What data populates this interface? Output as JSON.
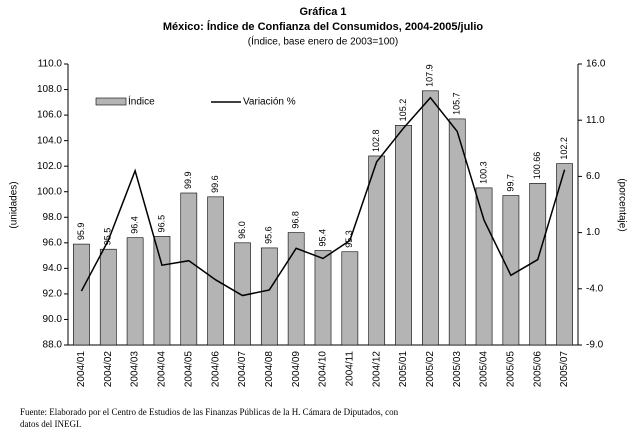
{
  "chart_data": {
    "type": "bar",
    "title": "Gráfica 1",
    "subtitle": "México: Índice de Confianza del Consumidos, 2004-2005/julio",
    "subtitle2": "(Índice, base enero de 2003=100)",
    "ylabel": "(unidades)",
    "y2label": "(porcentaje)",
    "footnote": [
      "Fuente: Elaborado por el Centro de Estudios de las Finanzas Públicas de la H. Cámara de Diputados, con",
      "datos del INEGI."
    ],
    "categories": [
      "2004/01",
      "2004/02",
      "2004/03",
      "2004/04",
      "2004/05",
      "2004/06",
      "2004/07",
      "2004/08",
      "2004/09",
      "2004/10",
      "2004/11",
      "2004/12",
      "2005/01",
      "2005/02",
      "2005/03",
      "2005/04",
      "2005/05",
      "2005/06",
      "2005/07"
    ],
    "series": [
      {
        "name": "Índice",
        "type": "bar",
        "color": "#b4b4b4",
        "values": [
          95.9,
          95.5,
          96.4,
          96.5,
          99.9,
          99.6,
          96.0,
          95.6,
          96.8,
          95.4,
          95.3,
          102.8,
          105.2,
          107.9,
          105.7,
          100.3,
          99.7,
          100.66,
          102.2
        ],
        "value_labels": [
          "95.9",
          "95.5",
          "96.4",
          "96.5",
          "99.9",
          "99.6",
          "96.0",
          "95.6",
          "96.8",
          "95.4",
          "95.3",
          "102.8",
          "105.2",
          "107.9",
          "105.7",
          "100.3",
          "99.7",
          "100.66",
          "102.2"
        ]
      },
      {
        "name": "Variación %",
        "type": "line",
        "axis": "y2",
        "color": "#000000",
        "values": [
          -4.2,
          0.3,
          6.5,
          -1.9,
          -1.5,
          -3.2,
          -4.6,
          -4.1,
          -0.4,
          -1.3,
          0.3,
          7.3,
          10.3,
          13.0,
          10.0,
          2.1,
          -2.8,
          -1.4,
          6.6
        ]
      }
    ],
    "ylim": [
      88,
      110
    ],
    "yticks": [
      {
        "value": 88,
        "label": "88.0"
      },
      {
        "value": 90,
        "label": "90.0"
      },
      {
        "value": 92,
        "label": "92.0"
      },
      {
        "value": 94,
        "label": "94.0"
      },
      {
        "value": 96,
        "label": "96.0"
      },
      {
        "value": 98,
        "label": "98.0"
      },
      {
        "value": 100,
        "label": "100.0"
      },
      {
        "value": 102,
        "label": "102.0"
      },
      {
        "value": 104,
        "label": "104.0"
      },
      {
        "value": 106,
        "label": "106.0"
      },
      {
        "value": 108,
        "label": "108.0"
      },
      {
        "value": 110,
        "label": "110.0"
      }
    ],
    "y2lim": [
      -9,
      16
    ],
    "y2ticks": [
      {
        "value": -9,
        "label": "-9.0"
      },
      {
        "value": -4,
        "label": "-4.0"
      },
      {
        "value": 1,
        "label": "1.0"
      },
      {
        "value": 6,
        "label": "6.0"
      },
      {
        "value": 11,
        "label": "11.0"
      },
      {
        "value": 16,
        "label": "16.0"
      }
    ],
    "legend": "upper left"
  }
}
